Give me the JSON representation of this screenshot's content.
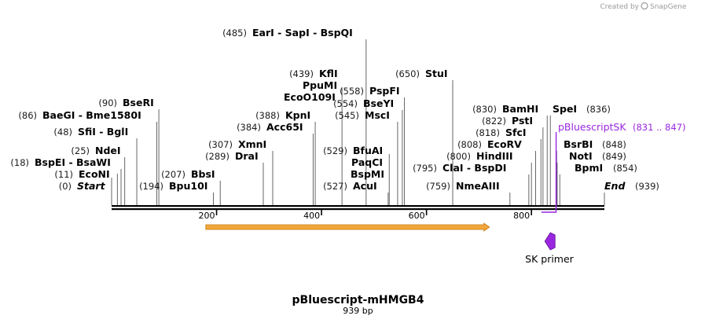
{
  "brand": {
    "created_by": "Created by",
    "name": "SnapGene"
  },
  "map": {
    "name": "pBluescript-mHMGB4",
    "length_label": "939 bp",
    "length": 939
  },
  "axis_ticks": [
    {
      "pos": 200,
      "label": "200"
    },
    {
      "pos": 400,
      "label": "400"
    },
    {
      "pos": 600,
      "label": "600"
    },
    {
      "pos": 800,
      "label": "800"
    }
  ],
  "sites": [
    {
      "id": "start",
      "pos": 0,
      "pos_label": "(0)",
      "label": "Start",
      "italic": true
    },
    {
      "id": "econi",
      "pos": 11,
      "pos_label": "(11)",
      "label": "EcoNI"
    },
    {
      "id": "bspei",
      "pos": 18,
      "pos_label": "(18)",
      "label": "BspEI  - BsaWI"
    },
    {
      "id": "ndei",
      "pos": 25,
      "pos_label": "(25)",
      "label": "NdeI"
    },
    {
      "id": "sfii",
      "pos": 48,
      "pos_label": "(48)",
      "label": "SfiI  - BglI"
    },
    {
      "id": "baegi",
      "pos": 86,
      "pos_label": "(86)",
      "label": "BaeGI  - Bme1580I"
    },
    {
      "id": "bseri",
      "pos": 90,
      "pos_label": "(90)",
      "label": "BseRI"
    },
    {
      "id": "bpu10i",
      "pos": 194,
      "pos_label": "(194)",
      "label": "Bpu10I"
    },
    {
      "id": "bbsi",
      "pos": 207,
      "pos_label": "(207)",
      "label": "BbsI"
    },
    {
      "id": "drai",
      "pos": 289,
      "pos_label": "(289)",
      "label": "DraI"
    },
    {
      "id": "xmni",
      "pos": 307,
      "pos_label": "(307)",
      "label": "XmnI"
    },
    {
      "id": "acc65i",
      "pos": 384,
      "pos_label": "(384)",
      "label": "Acc65I"
    },
    {
      "id": "kpni",
      "pos": 388,
      "pos_label": "(388)",
      "label": "KpnI"
    },
    {
      "id": "eco0109i",
      "pos": 439,
      "pos_label": "",
      "label": "EcoO109I"
    },
    {
      "id": "ppumi",
      "pos": 439,
      "pos_label": "",
      "label": "PpuMI"
    },
    {
      "id": "kfli",
      "pos": 439,
      "pos_label": "(439)",
      "label": "KflI"
    },
    {
      "id": "eari",
      "pos": 485,
      "pos_label": "(485)",
      "label": "EarI  - SapI  - BspQI"
    },
    {
      "id": "acui",
      "pos": 527,
      "pos_label": "(527)",
      "label": "AcuI"
    },
    {
      "id": "bspmi",
      "pos": 529,
      "pos_label": "",
      "label": "BspMI"
    },
    {
      "id": "paqci",
      "pos": 529,
      "pos_label": "",
      "label": "PaqCI"
    },
    {
      "id": "bfuai",
      "pos": 529,
      "pos_label": "(529)",
      "label": "BfuAI"
    },
    {
      "id": "msci",
      "pos": 545,
      "pos_label": "(545)",
      "label": "MscI"
    },
    {
      "id": "bseyi",
      "pos": 554,
      "pos_label": "(554)",
      "label": "BseYI"
    },
    {
      "id": "pspfi",
      "pos": 558,
      "pos_label": "(558)",
      "label": "PspFI"
    },
    {
      "id": "stui",
      "pos": 650,
      "pos_label": "(650)",
      "label": "StuI"
    },
    {
      "id": "nmeaiii",
      "pos": 759,
      "pos_label": "(759)",
      "label": "NmeAIII"
    },
    {
      "id": "clai",
      "pos": 795,
      "pos_label": "(795)",
      "label": "ClaI  - BspDI"
    },
    {
      "id": "hindiii",
      "pos": 800,
      "pos_label": "(800)",
      "label": "HindIII"
    },
    {
      "id": "ecorv",
      "pos": 808,
      "pos_label": "(808)",
      "label": "EcoRV"
    },
    {
      "id": "sfci",
      "pos": 818,
      "pos_label": "(818)",
      "label": "SfcI"
    },
    {
      "id": "psti",
      "pos": 822,
      "pos_label": "(822)",
      "label": "PstI"
    },
    {
      "id": "bamhi",
      "pos": 830,
      "pos_label": "(830)",
      "label": "BamHI"
    },
    {
      "id": "spei",
      "pos": 836,
      "pos_label": "(836)",
      "label": "SpeI"
    },
    {
      "id": "bsrbi",
      "pos": 848,
      "pos_label": "(848)",
      "label": "BsrBI"
    },
    {
      "id": "noti",
      "pos": 849,
      "pos_label": "(849)",
      "label": "NotI"
    },
    {
      "id": "bpmi",
      "pos": 854,
      "pos_label": "(854)",
      "label": "BpmI"
    },
    {
      "id": "end",
      "pos": 939,
      "pos_label": "(939)",
      "label": "End",
      "italic": true
    }
  ],
  "primer": {
    "name": "pBluescriptSK",
    "range_label": "(831 .. 847)",
    "start": 831,
    "end": 847,
    "color": "#9a27e0"
  },
  "features": [
    {
      "name": "orf",
      "label": "",
      "start": 175,
      "end": 720,
      "color": "#f3a73a",
      "direction": "forward"
    },
    {
      "name": "sk-primer",
      "label": "SK primer",
      "pos": 836,
      "color": "#9a27e0",
      "direction": "reverse"
    }
  ]
}
